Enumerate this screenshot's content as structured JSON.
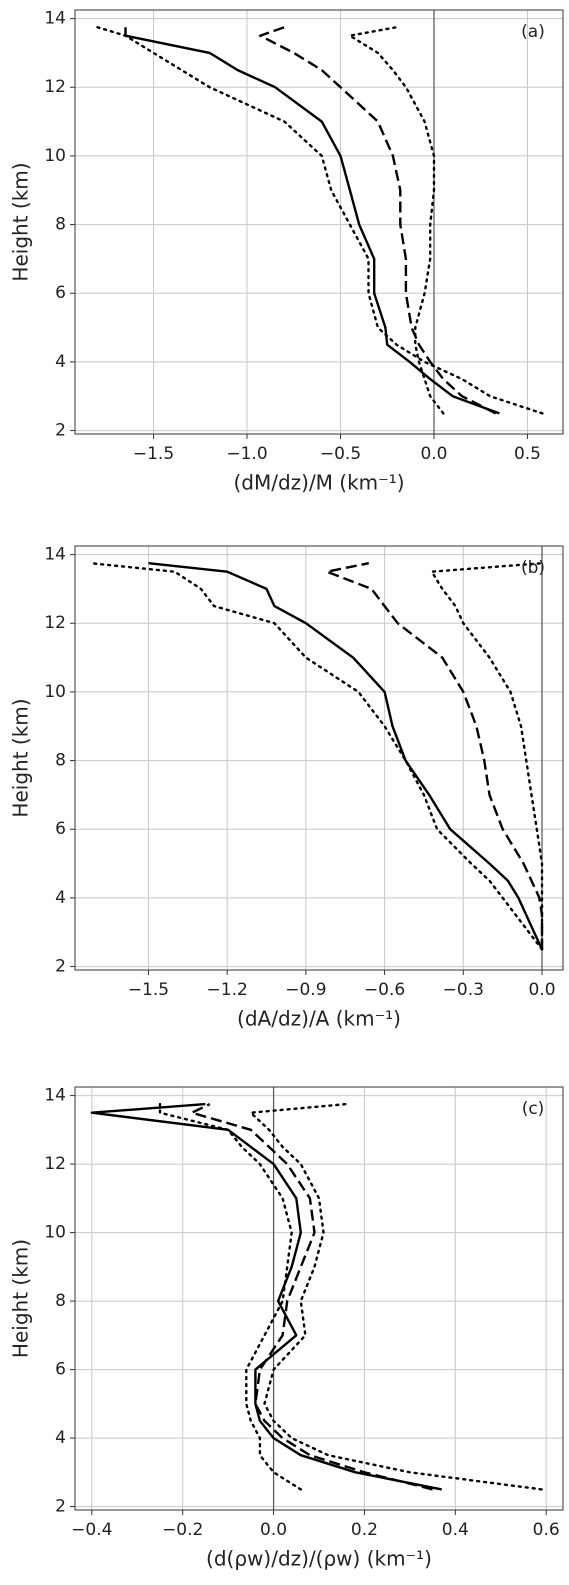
{
  "chart_data": [
    {
      "type": "line",
      "panel_label": "(a)",
      "xlabel": "(dM/dz)/M (km⁻¹)",
      "ylabel": "Height (km)",
      "xlim": [
        -1.92,
        0.69
      ],
      "ylim": [
        1.9,
        14.25
      ],
      "xticks": [
        {
          "value": -1.5,
          "label": "−1.5"
        },
        {
          "value": -1,
          "label": "−1.0"
        },
        {
          "value": -0.5,
          "label": "−0.5"
        },
        {
          "value": 0,
          "label": "0.0"
        },
        0.5
      ],
      "yticks": [
        2,
        4,
        6,
        8,
        10,
        12,
        14
      ],
      "grid": true,
      "y": [
        2.5,
        3,
        3.5,
        4,
        4.5,
        5,
        6,
        7,
        8,
        9,
        10,
        11,
        12,
        12.5,
        13,
        13.5,
        13.75
      ],
      "series": [
        {
          "color": "#000000",
          "style": "solid",
          "values": [
            0.35,
            0.1,
            -0.02,
            -0.13,
            -0.25,
            -0.26,
            -0.32,
            -0.32,
            -0.4,
            -0.45,
            -0.5,
            -0.6,
            -0.85,
            -1.05,
            -1.2,
            -1.65,
            -1.65
          ]
        },
        {
          "color": "#000000",
          "style": "dashed",
          "values": [
            0.33,
            0.15,
            0.05,
            -0.02,
            -0.08,
            -0.12,
            -0.15,
            -0.15,
            -0.18,
            -0.18,
            -0.22,
            -0.3,
            -0.5,
            -0.6,
            -0.75,
            -0.93,
            -0.8
          ]
        },
        {
          "color": "#000000",
          "style": "dotted",
          "values": [
            0.05,
            -0.02,
            -0.05,
            -0.08,
            -0.1,
            -0.1,
            -0.05,
            -0.02,
            -0.02,
            0,
            0,
            -0.05,
            -0.15,
            -0.22,
            -0.3,
            -0.45,
            -0.2
          ]
        },
        {
          "color": "#000000",
          "style": "dotted",
          "values": [
            0.58,
            0.3,
            0.15,
            -0.05,
            -0.2,
            -0.3,
            -0.35,
            -0.35,
            -0.45,
            -0.55,
            -0.6,
            -0.8,
            -1.2,
            -1.35,
            -1.5,
            -1.65,
            -1.8
          ]
        }
      ]
    },
    {
      "type": "line",
      "panel_label": "(b)",
      "xlabel": "(dA/dz)/A (km⁻¹)",
      "ylabel": "Height (km)",
      "xlim": [
        -1.78,
        0.08
      ],
      "ylim": [
        1.9,
        14.25
      ],
      "xticks": [
        {
          "value": -1.5,
          "label": "−1.5"
        },
        {
          "value": -1.2,
          "label": "−1.2"
        },
        {
          "value": -0.9,
          "label": "−0.9"
        },
        {
          "value": -0.6,
          "label": "−0.6"
        },
        {
          "value": -0.3,
          "label": "−0.3"
        },
        {
          "value": 0,
          "label": "0.0"
        }
      ],
      "yticks": [
        2,
        4,
        6,
        8,
        10,
        12,
        14
      ],
      "grid": true,
      "y": [
        2.5,
        3,
        3.5,
        4,
        4.5,
        5,
        6,
        7,
        8,
        9,
        10,
        11,
        12,
        12.5,
        13,
        13.5,
        13.75
      ],
      "series": [
        {
          "color": "#000000",
          "style": "solid",
          "values": [
            0,
            -0.03,
            -0.06,
            -0.09,
            -0.13,
            -0.2,
            -0.35,
            -0.43,
            -0.52,
            -0.57,
            -0.6,
            -0.72,
            -0.9,
            -1.02,
            -1.05,
            -1.2,
            -1.5
          ]
        },
        {
          "color": "#000000",
          "style": "dashed",
          "values": [
            0,
            0,
            0,
            -0.01,
            -0.04,
            -0.07,
            -0.15,
            -0.2,
            -0.22,
            -0.25,
            -0.3,
            -0.38,
            -0.55,
            -0.6,
            -0.65,
            -0.82,
            -0.66
          ]
        },
        {
          "color": "#000000",
          "style": "dotted",
          "values": [
            0,
            0,
            0,
            0,
            0,
            0,
            -0.02,
            -0.04,
            -0.06,
            -0.08,
            -0.12,
            -0.2,
            -0.3,
            -0.33,
            -0.38,
            -0.42,
            0
          ]
        },
        {
          "color": "#000000",
          "style": "dotted",
          "values": [
            0,
            -0.05,
            -0.1,
            -0.15,
            -0.2,
            -0.27,
            -0.4,
            -0.45,
            -0.52,
            -0.6,
            -0.7,
            -0.9,
            -1.02,
            -1.25,
            -1.3,
            -1.4,
            -1.72
          ]
        }
      ]
    },
    {
      "type": "line",
      "panel_label": "(c)",
      "xlabel": "(d(ρw)/dz)/(ρw) (km⁻¹)",
      "ylabel": "Height (km)",
      "xlim": [
        -0.437,
        0.637
      ],
      "ylim": [
        1.9,
        14.25
      ],
      "xticks": [
        {
          "value": -0.4,
          "label": "−0.4"
        },
        {
          "value": -0.2,
          "label": "−0.2"
        },
        {
          "value": 0,
          "label": "0.0"
        },
        0.2,
        0.4,
        0.6
      ],
      "yticks": [
        2,
        4,
        6,
        8,
        10,
        12,
        14
      ],
      "grid": true,
      "y": [
        2.5,
        3,
        3.5,
        4,
        4.5,
        5,
        6,
        7,
        8,
        9,
        10,
        11,
        12,
        12.5,
        13,
        13.5,
        13.75
      ],
      "series": [
        {
          "color": "#000000",
          "style": "solid",
          "values": [
            0.37,
            0.18,
            0.06,
            0,
            -0.03,
            -0.04,
            -0.04,
            0.05,
            0.01,
            0.04,
            0.06,
            0.05,
            0,
            -0.05,
            -0.1,
            -0.4,
            -0.15
          ]
        },
        {
          "color": "#000000",
          "style": "dashed",
          "values": [
            0.35,
            0.2,
            0.08,
            0.02,
            -0.02,
            -0.04,
            -0.03,
            0.02,
            0.03,
            0.06,
            0.09,
            0.08,
            0.03,
            -0.01,
            -0.05,
            -0.18,
            -0.14
          ]
        },
        {
          "color": "#000000",
          "style": "dotted",
          "values": [
            0.59,
            0.3,
            0.12,
            0.04,
            0,
            -0.02,
            0,
            0.07,
            0.06,
            0.09,
            0.11,
            0.1,
            0.06,
            0.02,
            -0.01,
            -0.05,
            0.16
          ]
        },
        {
          "color": "#000000",
          "style": "dotted",
          "values": [
            0.06,
            0,
            -0.03,
            -0.03,
            -0.05,
            -0.06,
            -0.06,
            -0.02,
            0.02,
            0.03,
            0.04,
            0.02,
            -0.03,
            -0.07,
            -0.1,
            -0.25,
            -0.25
          ]
        }
      ]
    }
  ]
}
